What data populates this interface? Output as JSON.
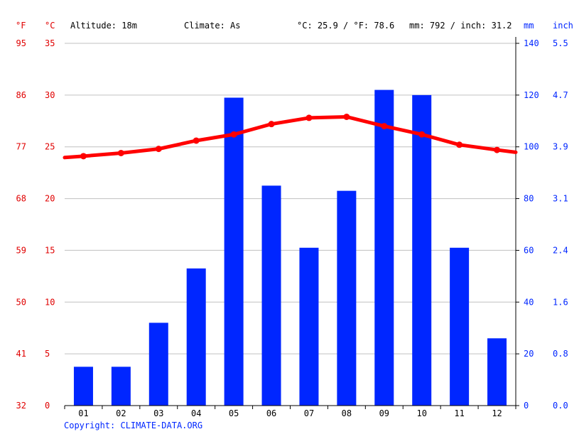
{
  "header": {
    "unit_f": "°F",
    "unit_c": "°C",
    "altitude": "Altitude: 18m",
    "climate": "Climate: As",
    "temp_avg": "°C: 25.9 / °F: 78.6",
    "precip_total": "mm: 792 / inch: 31.2",
    "unit_mm": "mm",
    "unit_inch": "inch"
  },
  "footer": {
    "copyright": "Copyright: CLIMATE-DATA.ORG"
  },
  "colors": {
    "temperature": "#ff0000",
    "precipitation": "#0026ff",
    "left_axis_text": "#e00000",
    "right_axis_text": "#0026ff",
    "grid": "#c0c0c0"
  },
  "chart_data": {
    "type": "bar",
    "categories": [
      "01",
      "02",
      "03",
      "04",
      "05",
      "06",
      "07",
      "08",
      "09",
      "10",
      "11",
      "12"
    ],
    "series": [
      {
        "type": "bar",
        "axis": "right_mm",
        "values": [
          15,
          15,
          32,
          53,
          119,
          85,
          61,
          83,
          122,
          120,
          61,
          26
        ]
      },
      {
        "type": "line",
        "axis": "left_c",
        "values": [
          24.1,
          24.4,
          24.8,
          25.6,
          26.2,
          27.2,
          27.8,
          27.9,
          27.0,
          26.2,
          25.2,
          24.7
        ]
      }
    ],
    "axes": {
      "left_c": {
        "ticks": [
          "0",
          "5",
          "10",
          "15",
          "20",
          "25",
          "30",
          "35"
        ],
        "range": [
          0,
          35
        ]
      },
      "left_f": {
        "ticks": [
          "32",
          "41",
          "50",
          "59",
          "68",
          "77",
          "86",
          "95"
        ]
      },
      "right_mm": {
        "ticks": [
          "0",
          "20",
          "40",
          "60",
          "80",
          "100",
          "120",
          "140"
        ],
        "range": [
          0,
          140
        ]
      },
      "right_inch": {
        "ticks": [
          "0.0",
          "0.8",
          "1.6",
          "2.4",
          "3.1",
          "3.9",
          "4.7",
          "5.5"
        ]
      }
    },
    "grid": true
  }
}
